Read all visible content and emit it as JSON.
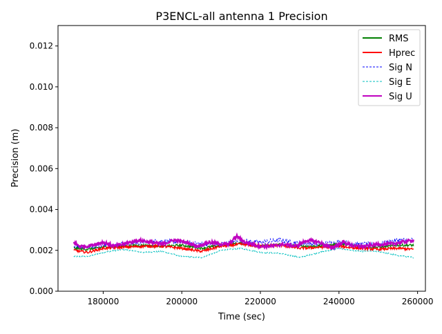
{
  "chart_data": {
    "type": "line",
    "title": "P3ENCL-all antenna 1 Precision",
    "xlabel": "Time (sec)",
    "ylabel": "Precision (m)",
    "xlim": [
      168500,
      262000
    ],
    "ylim": [
      0,
      0.013
    ],
    "xticks": [
      180000,
      200000,
      220000,
      240000,
      260000
    ],
    "xtick_labels": [
      "180000",
      "200000",
      "220000",
      "240000",
      "260000"
    ],
    "yticks": [
      0,
      0.002,
      0.004,
      0.006,
      0.008,
      0.01,
      0.012
    ],
    "ytick_labels": [
      "0.000",
      "0.002",
      "0.004",
      "0.006",
      "0.008",
      "0.010",
      "0.012"
    ],
    "legend_position": "top-right",
    "series": [
      {
        "name": "RMS",
        "color": "#008000",
        "style": "solid",
        "x": [
          172500,
          176000,
          180000,
          185000,
          190000,
          195000,
          200000,
          205000,
          210000,
          215000,
          220000,
          225000,
          230000,
          235000,
          240000,
          245000,
          250000,
          255000,
          259000
        ],
        "y": [
          0.0021,
          0.00205,
          0.00215,
          0.0022,
          0.00225,
          0.0022,
          0.00225,
          0.0021,
          0.00225,
          0.00235,
          0.0022,
          0.0023,
          0.0022,
          0.0022,
          0.0023,
          0.0022,
          0.00215,
          0.00225,
          0.00225
        ]
      },
      {
        "name": "Hprec",
        "color": "#ff0000",
        "style": "solid",
        "x": [
          172500,
          176000,
          180000,
          185000,
          190000,
          195000,
          200000,
          205000,
          210000,
          215000,
          220000,
          225000,
          230000,
          235000,
          240000,
          245000,
          250000,
          255000,
          259000
        ],
        "y": [
          0.002,
          0.0019,
          0.0021,
          0.00215,
          0.0022,
          0.0022,
          0.0021,
          0.00195,
          0.0022,
          0.0023,
          0.0022,
          0.00225,
          0.0021,
          0.00215,
          0.0022,
          0.0021,
          0.00205,
          0.0021,
          0.00205
        ]
      },
      {
        "name": "Sig N",
        "color": "#0000ff",
        "style": "dashed",
        "x": [
          172500,
          176000,
          180000,
          185000,
          190000,
          195000,
          200000,
          205000,
          210000,
          215000,
          220000,
          225000,
          230000,
          235000,
          240000,
          245000,
          250000,
          255000,
          259000
        ],
        "y": [
          0.0022,
          0.00215,
          0.00225,
          0.0023,
          0.0024,
          0.00245,
          0.0024,
          0.0023,
          0.0023,
          0.00245,
          0.0024,
          0.0025,
          0.00235,
          0.0023,
          0.0024,
          0.0023,
          0.0023,
          0.0025,
          0.0025
        ]
      },
      {
        "name": "Sig E",
        "color": "#00bfbf",
        "style": "dashed",
        "x": [
          172500,
          176000,
          180000,
          185000,
          190000,
          195000,
          200000,
          205000,
          210000,
          215000,
          220000,
          225000,
          230000,
          235000,
          240000,
          245000,
          250000,
          255000,
          259000
        ],
        "y": [
          0.0017,
          0.0017,
          0.0019,
          0.00205,
          0.0019,
          0.00195,
          0.0017,
          0.00165,
          0.002,
          0.0021,
          0.0019,
          0.00185,
          0.00165,
          0.0019,
          0.0021,
          0.00195,
          0.00195,
          0.00175,
          0.00165
        ]
      },
      {
        "name": "Sig U",
        "color": "#bf00bf",
        "style": "solid",
        "x": [
          172500,
          174000,
          176000,
          180000,
          183000,
          186000,
          189000,
          192000,
          195000,
          198000,
          201000,
          204000,
          207000,
          210000,
          212000,
          214000,
          216000,
          220000,
          223000,
          226000,
          229000,
          232000,
          235000,
          238000,
          241000,
          244000,
          247000,
          250000,
          253000,
          256000,
          259000
        ],
        "y": [
          0.0024,
          0.0022,
          0.0022,
          0.0024,
          0.0022,
          0.00235,
          0.0025,
          0.0024,
          0.0023,
          0.0025,
          0.0024,
          0.0022,
          0.0024,
          0.0023,
          0.0023,
          0.0027,
          0.0024,
          0.0022,
          0.0022,
          0.0023,
          0.0022,
          0.0025,
          0.0024,
          0.0021,
          0.0024,
          0.0022,
          0.0022,
          0.0023,
          0.0023,
          0.0024,
          0.0025
        ]
      }
    ]
  }
}
